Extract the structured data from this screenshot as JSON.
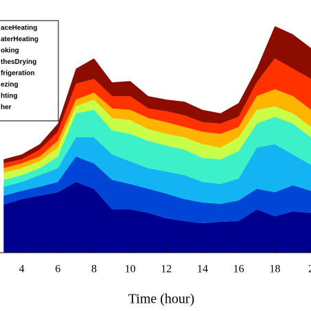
{
  "chart_data": {
    "type": "stacked_area",
    "xlabel": "Time (hour)",
    "x": [
      3,
      4,
      5,
      6,
      7,
      8,
      9,
      10,
      11,
      12,
      13,
      14,
      15,
      16,
      17,
      18,
      19,
      20
    ],
    "xlim": [
      2.8,
      20
    ],
    "xticks": [
      4,
      6,
      8,
      10,
      12,
      14,
      16,
      18,
      {
        "value": 20,
        "label": "2"
      }
    ],
    "ylim": [
      0,
      338
    ],
    "series": [
      {
        "name": "her",
        "color": "#00008f",
        "values": [
          70,
          78,
          83,
          88,
          103,
          93,
          63,
          63,
          58,
          50,
          46,
          43,
          45,
          46,
          63,
          53,
          60,
          58
        ]
      },
      {
        "name": "hting",
        "color": "#0046d6",
        "values": [
          13,
          12,
          13,
          15,
          37,
          37,
          43,
          37,
          35,
          36,
          32,
          30,
          26,
          30,
          30,
          35,
          38,
          32
        ]
      },
      {
        "name": "ezing",
        "color": "#12b4f2",
        "values": [
          13,
          13,
          17,
          20,
          28,
          38,
          37,
          33,
          30,
          32,
          35,
          30,
          29,
          32,
          60,
          70,
          45,
          38
        ]
      },
      {
        "name": "frigeration",
        "color": "#3cf0c8",
        "values": [
          10,
          10,
          10,
          17,
          35,
          40,
          35,
          40,
          40,
          38,
          37,
          35,
          36,
          40,
          35,
          40,
          45,
          40
        ]
      },
      {
        "name": "thesDrying",
        "color": "#c8ff46",
        "values": [
          10,
          10,
          10,
          13,
          10,
          15,
          18,
          20,
          17,
          17,
          18,
          20,
          17,
          20,
          20,
          15,
          15,
          15
        ]
      },
      {
        "name": "oking",
        "color": "#ffb400",
        "values": [
          7,
          7,
          7,
          10,
          10,
          10,
          14,
          15,
          16,
          17,
          15,
          18,
          20,
          15,
          20,
          25,
          25,
          25
        ]
      },
      {
        "name": "aterHeating",
        "color": "#ff3200",
        "values": [
          7,
          6,
          10,
          13,
          23,
          20,
          18,
          20,
          14,
          16,
          17,
          14,
          15,
          15,
          20,
          45,
          40,
          45
        ]
      },
      {
        "name": "aceHeating",
        "color": "#8c0c00",
        "values": [
          6,
          7,
          8,
          12,
          22,
          30,
          20,
          22,
          18,
          17,
          20,
          18,
          15,
          20,
          20,
          47,
          50,
          45
        ]
      }
    ]
  }
}
